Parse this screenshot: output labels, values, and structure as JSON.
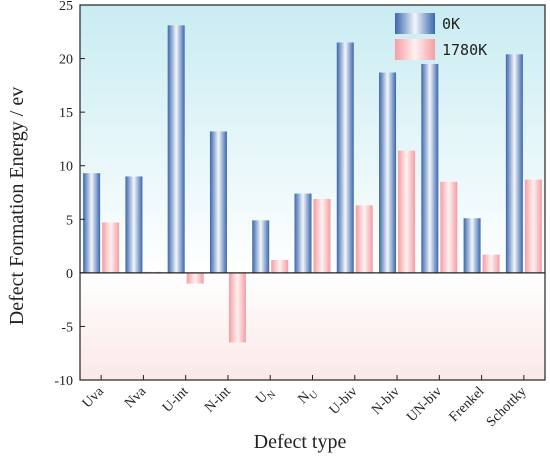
{
  "chart_data": {
    "type": "bar",
    "title": "",
    "xlabel": "Defect type",
    "ylabel": "Defect Formation Energy / ev",
    "ylim": [
      -10,
      25
    ],
    "yticks": [
      -10,
      -5,
      0,
      5,
      10,
      15,
      20,
      25
    ],
    "grid": false,
    "legend_position": "top-right",
    "categories": [
      {
        "main": "Uva",
        "sub": ""
      },
      {
        "main": "Nva",
        "sub": ""
      },
      {
        "main": "U-int",
        "sub": ""
      },
      {
        "main": "N-int",
        "sub": ""
      },
      {
        "main": "U",
        "sub": "N"
      },
      {
        "main": "N",
        "sub": "U"
      },
      {
        "main": "U-biv",
        "sub": ""
      },
      {
        "main": "N-biv",
        "sub": ""
      },
      {
        "main": "UN-biv",
        "sub": ""
      },
      {
        "main": "Frenkel",
        "sub": ""
      },
      {
        "main": "Schottky",
        "sub": ""
      }
    ],
    "series": [
      {
        "name": "0K",
        "color": "#3d6db5",
        "values": [
          9.3,
          9.0,
          23.1,
          13.2,
          4.9,
          7.4,
          21.5,
          18.7,
          19.5,
          5.1,
          20.4
        ]
      },
      {
        "name": "1780K",
        "color": "#f4a3a8",
        "values": [
          4.7,
          0.1,
          -1.0,
          -6.5,
          1.2,
          6.9,
          6.3,
          11.4,
          8.5,
          1.7,
          8.7
        ]
      }
    ]
  }
}
